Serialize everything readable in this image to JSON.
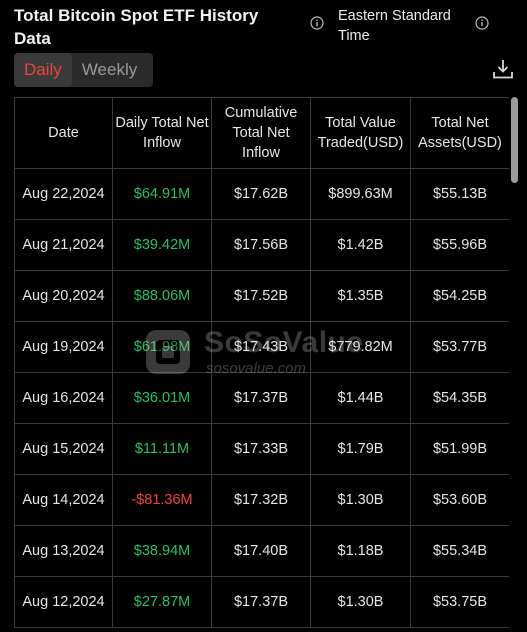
{
  "header": {
    "title": "Total Bitcoin Spot ETF History Data",
    "timezone": "Eastern Standard Time",
    "tabs": [
      {
        "label": "Daily",
        "active": true
      },
      {
        "label": "Weekly",
        "active": false
      }
    ]
  },
  "table": {
    "columns": [
      "Date",
      "Daily Total Net Inflow",
      "Cumulative Total Net Inflow",
      "Total Value Traded(USD)",
      "Total Net Assets(USD)"
    ],
    "rows": [
      {
        "date": "Aug 22,2024",
        "inflow": "$64.91M",
        "cumulative": "$17.62B",
        "traded": "$899.63M",
        "assets": "$55.13B"
      },
      {
        "date": "Aug 21,2024",
        "inflow": "$39.42M",
        "cumulative": "$17.56B",
        "traded": "$1.42B",
        "assets": "$55.96B"
      },
      {
        "date": "Aug 20,2024",
        "inflow": "$88.06M",
        "cumulative": "$17.52B",
        "traded": "$1.35B",
        "assets": "$54.25B"
      },
      {
        "date": "Aug 19,2024",
        "inflow": "$61.98M",
        "cumulative": "$17.43B",
        "traded": "$779.82M",
        "assets": "$53.77B"
      },
      {
        "date": "Aug 16,2024",
        "inflow": "$36.01M",
        "cumulative": "$17.37B",
        "traded": "$1.44B",
        "assets": "$54.35B"
      },
      {
        "date": "Aug 15,2024",
        "inflow": "$11.11M",
        "cumulative": "$17.33B",
        "traded": "$1.79B",
        "assets": "$51.99B"
      },
      {
        "date": "Aug 14,2024",
        "inflow": "-$81.36M",
        "cumulative": "$17.32B",
        "traded": "$1.30B",
        "assets": "$53.60B"
      },
      {
        "date": "Aug 13,2024",
        "inflow": "$38.94M",
        "cumulative": "$17.40B",
        "traded": "$1.18B",
        "assets": "$55.34B"
      },
      {
        "date": "Aug 12,2024",
        "inflow": "$27.87M",
        "cumulative": "$17.37B",
        "traded": "$1.30B",
        "assets": "$53.75B"
      }
    ]
  },
  "watermark": {
    "name": "SoSoValue",
    "url": "sosovalue.com"
  },
  "colors": {
    "positive": "#2dbd62",
    "negative": "#e8463d",
    "active_tab": "#e8463d",
    "background": "#000000",
    "grid": "#3a3a3a"
  },
  "icons": [
    "info-icon",
    "download-icon"
  ]
}
